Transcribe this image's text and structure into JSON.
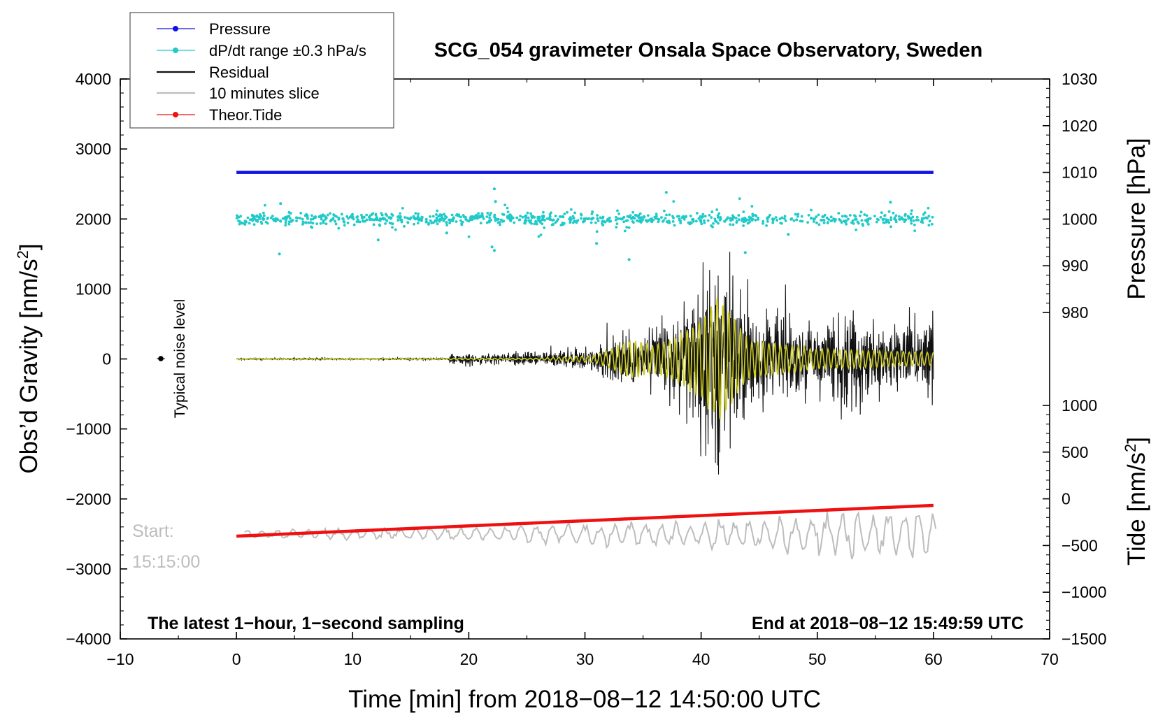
{
  "colors": {
    "pressure": "#1010e6",
    "dpdt": "#1fcac9",
    "residual": "#111111",
    "slice": "#bdbdbd",
    "tide": "#ee1111",
    "filtered": "#cccc22"
  },
  "chart_data": {
    "type": "line",
    "title": "SCG_054 gravimeter Onsala Space Observatory, Sweden",
    "xlabel": "Time [min] from 2018−08−12 14:50:00 UTC",
    "ylabel_left_main": "Obs’d Gravity [nm/s",
    "ylabel_left_sup": "2",
    "ylabel_left_end": "]",
    "ylabel_right_pressure": "Pressure [hPa]",
    "ylabel_right_tide_main": "Tide [nm/s",
    "ylabel_right_tide_sup": "2",
    "ylabel_right_tide_end": "]",
    "xlim": [
      -10,
      70
    ],
    "ylim": [
      -4000,
      4000
    ],
    "pressure_axis_range": [
      980,
      1030
    ],
    "tide_axis_range": [
      -1500,
      1000
    ],
    "x_ticks": [
      "−10",
      "0",
      "10",
      "20",
      "30",
      "40",
      "50",
      "60",
      "70"
    ],
    "y_ticks": [
      "−4000",
      "−3000",
      "−2000",
      "−1000",
      "0",
      "1000",
      "2000",
      "3000",
      "4000"
    ],
    "pressure_ticks": [
      "980",
      "990",
      "1000",
      "1010",
      "1020",
      "1030"
    ],
    "tide_ticks": [
      "−1500",
      "−1000",
      "−500",
      "0",
      "500",
      "1000"
    ],
    "legend": [
      {
        "label": "Pressure",
        "color": "#1010e6",
        "marker": "dot"
      },
      {
        "label": "dP/dt range ±0.3 hPa/s",
        "color": "#1fcac9",
        "marker": "dot"
      },
      {
        "label": "Residual",
        "color": "#111111",
        "marker": "none"
      },
      {
        "label": "10 minutes slice",
        "color": "#bdbdbd",
        "marker": "none"
      },
      {
        "label": "Theor.Tide",
        "color": "#ee1111",
        "marker": "dot"
      }
    ],
    "annotations": {
      "noise_label": "Typical noise level",
      "noise_marker": {
        "x": -7,
        "y": 0
      },
      "start_label": "Start:",
      "start_time": "15:15:00",
      "bottom_left": "The latest 1−hour, 1−second sampling",
      "bottom_right": "End at 2018−08−12 15:49:59 UTC"
    },
    "series": [
      {
        "name": "Pressure",
        "axis": "pressure",
        "x": [
          0,
          60
        ],
        "values": [
          1010.0,
          1010.0
        ]
      },
      {
        "name": "dP/dt range ±0.3 hPa/s",
        "axis": "left",
        "x": [
          0,
          60
        ],
        "center": 2000,
        "typical_spread": 40,
        "outliers": [
          {
            "x": 3.7,
            "y": 1500
          },
          {
            "x": 3.8,
            "y": 2220
          },
          {
            "x": 12.2,
            "y": 1700
          },
          {
            "x": 22.2,
            "y": 2430
          },
          {
            "x": 22.3,
            "y": 2250
          },
          {
            "x": 22.2,
            "y": 1550
          },
          {
            "x": 22.0,
            "y": 1600
          },
          {
            "x": 33.8,
            "y": 1420
          },
          {
            "x": 37.0,
            "y": 2380
          },
          {
            "x": 43.8,
            "y": 1520
          },
          {
            "x": 31.0,
            "y": 1650
          },
          {
            "x": 56.3,
            "y": 2240
          },
          {
            "x": 18.1,
            "y": 1800
          },
          {
            "x": 47.5,
            "y": 1780
          }
        ]
      },
      {
        "name": "Residual",
        "axis": "left",
        "envelope": [
          {
            "x": 0,
            "a": 10
          },
          {
            "x": 18.2,
            "a": 12
          },
          {
            "x": 18.4,
            "a": 70
          },
          {
            "x": 26,
            "a": 80
          },
          {
            "x": 30,
            "a": 150
          },
          {
            "x": 33,
            "a": 350
          },
          {
            "x": 35,
            "a": 300
          },
          {
            "x": 37,
            "a": 450
          },
          {
            "x": 39,
            "a": 700
          },
          {
            "x": 41.5,
            "a": 1700
          },
          {
            "x": 43,
            "a": 900
          },
          {
            "x": 45,
            "a": 700
          },
          {
            "x": 47,
            "a": 600
          },
          {
            "x": 50,
            "a": 450
          },
          {
            "x": 53,
            "a": 650
          },
          {
            "x": 55,
            "a": 400
          },
          {
            "x": 57,
            "a": 500
          },
          {
            "x": 60,
            "a": 550
          }
        ]
      },
      {
        "name": "Filtered",
        "axis": "left",
        "envelope": [
          {
            "x": 0,
            "a": 8
          },
          {
            "x": 26,
            "a": 10
          },
          {
            "x": 31,
            "a": 60
          },
          {
            "x": 34,
            "a": 300
          },
          {
            "x": 36,
            "a": 200
          },
          {
            "x": 38,
            "a": 350
          },
          {
            "x": 40,
            "a": 600
          },
          {
            "x": 41.5,
            "a": 980
          },
          {
            "x": 42.5,
            "a": 700
          },
          {
            "x": 44,
            "a": 300
          },
          {
            "x": 46,
            "a": 250
          },
          {
            "x": 50,
            "a": 150
          },
          {
            "x": 60,
            "a": 100
          }
        ]
      },
      {
        "name": "Theor.Tide",
        "axis": "tide",
        "x": [
          0,
          60
        ],
        "values": [
          -400,
          -70
        ]
      },
      {
        "name": "10 minutes slice",
        "axis": "left",
        "base": -2500,
        "envelope": [
          {
            "x": 0,
            "a": 60
          },
          {
            "x": 20,
            "a": 90
          },
          {
            "x": 30,
            "a": 150
          },
          {
            "x": 40,
            "a": 180
          },
          {
            "x": 50,
            "a": 280
          },
          {
            "x": 53,
            "a": 380
          },
          {
            "x": 60,
            "a": 330
          }
        ]
      }
    ]
  }
}
